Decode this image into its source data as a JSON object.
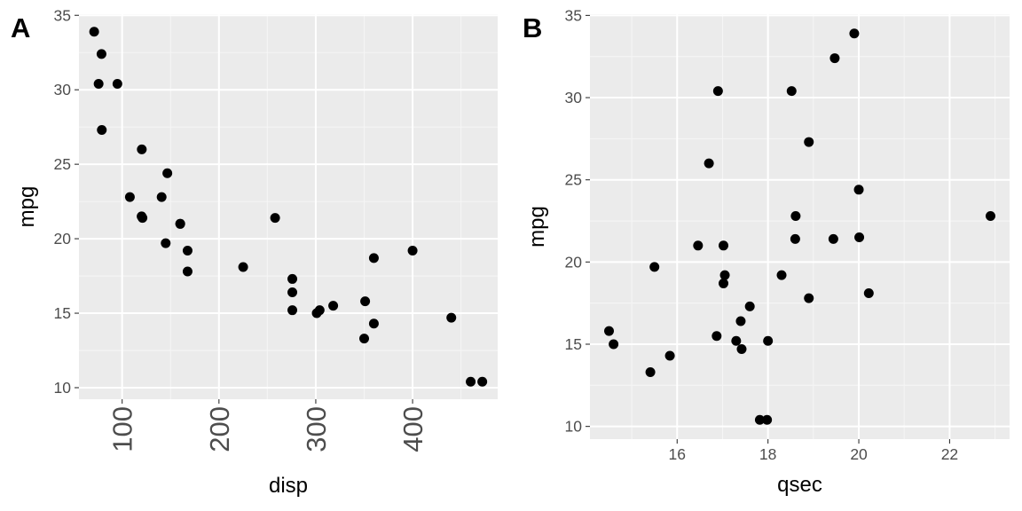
{
  "chart_data": [
    {
      "type": "scatter",
      "tag": "A",
      "xlabel": "disp",
      "ylabel": "mpg",
      "xlim": [
        55.4,
        487.9
      ],
      "ylim": [
        9.225,
        35.075
      ],
      "xticks": [
        100,
        200,
        300,
        400
      ],
      "xtick_labels": [
        "100",
        "200",
        "300",
        "400"
      ],
      "xminor": [
        150,
        250,
        350,
        450
      ],
      "yticks": [
        10,
        15,
        20,
        25,
        30,
        35
      ],
      "ytick_labels": [
        "10",
        "15",
        "20",
        "25",
        "30",
        "35"
      ],
      "yminor": [
        12.5,
        17.5,
        22.5,
        27.5,
        32.5
      ],
      "grid": true,
      "x": [
        160,
        160,
        108,
        258,
        360,
        225,
        360,
        146.7,
        140.8,
        167.6,
        167.6,
        275.8,
        275.8,
        275.8,
        472,
        460,
        440,
        78.7,
        75.7,
        71.1,
        120.1,
        318,
        304,
        350,
        400,
        79,
        120.3,
        95.1,
        351,
        145,
        301,
        121
      ],
      "y": [
        21,
        21,
        22.8,
        21.4,
        18.7,
        18.1,
        14.3,
        24.4,
        22.8,
        19.2,
        17.8,
        16.4,
        17.3,
        15.2,
        10.4,
        10.4,
        14.7,
        32.4,
        30.4,
        33.9,
        21.5,
        15.5,
        15.2,
        13.3,
        19.2,
        27.3,
        26,
        30.4,
        15.8,
        19.7,
        15,
        21.4
      ]
    },
    {
      "type": "scatter",
      "tag": "B",
      "xlabel": "qsec",
      "ylabel": "mpg",
      "xlim": [
        14.08,
        23.32
      ],
      "ylim": [
        9.225,
        35.075
      ],
      "xticks": [
        16,
        18,
        20,
        22
      ],
      "xtick_labels": [
        "16",
        "18",
        "20",
        "22"
      ],
      "xminor": [
        15,
        17,
        19,
        21,
        23
      ],
      "yticks": [
        10,
        15,
        20,
        25,
        30,
        35
      ],
      "ytick_labels": [
        "10",
        "15",
        "20",
        "25",
        "30",
        "35"
      ],
      "yminor": [
        12.5,
        17.5,
        22.5,
        27.5,
        32.5
      ],
      "grid": true,
      "x": [
        16.46,
        17.02,
        18.61,
        19.44,
        17.02,
        20.22,
        15.84,
        20,
        22.9,
        18.3,
        18.9,
        17.4,
        17.6,
        18,
        17.98,
        17.82,
        17.42,
        19.47,
        18.52,
        19.9,
        20.01,
        16.87,
        17.3,
        15.41,
        17.05,
        18.9,
        16.7,
        16.9,
        14.5,
        15.5,
        14.6,
        18.6
      ],
      "y": [
        21,
        21,
        22.8,
        21.4,
        18.7,
        18.1,
        14.3,
        24.4,
        22.8,
        19.2,
        17.8,
        16.4,
        17.3,
        15.2,
        10.4,
        10.4,
        14.7,
        32.4,
        30.4,
        33.9,
        21.5,
        15.5,
        15.2,
        13.3,
        19.2,
        27.3,
        26,
        30.4,
        15.8,
        19.7,
        15,
        21.4
      ]
    }
  ]
}
